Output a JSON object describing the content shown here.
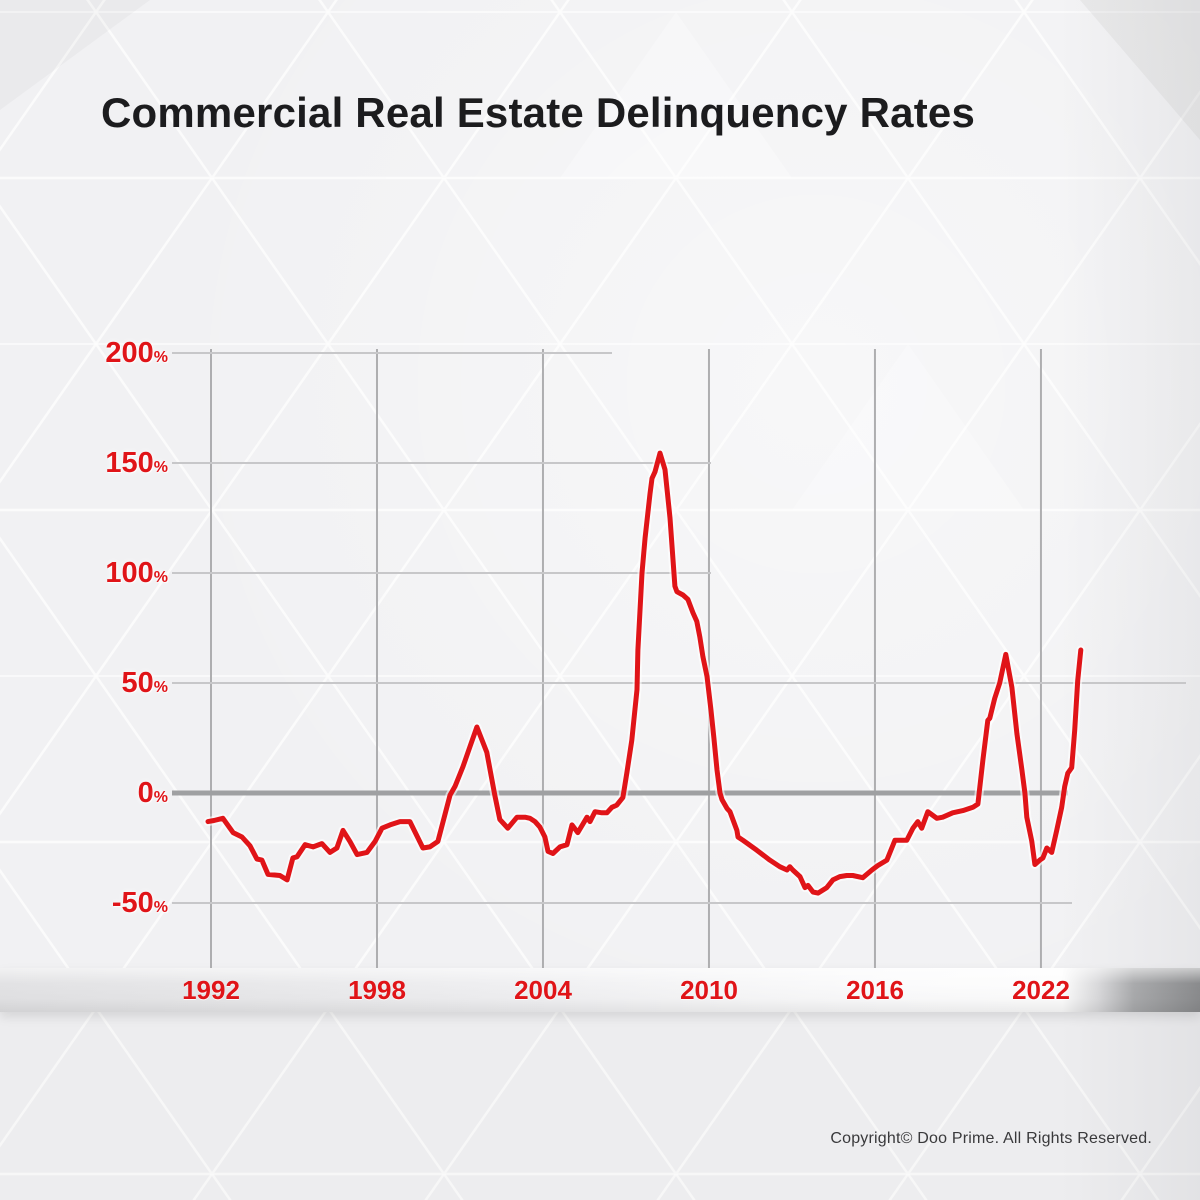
{
  "title": "Commercial Real Estate Delinquency Rates",
  "footer": {
    "copyright": "Copyright© Doo Prime. All Rights Reserved."
  },
  "colors": {
    "accent_red": "#e01418",
    "title_text": "#1c1c1e",
    "grid_line": "#c7c7c9",
    "vertical_grid_line": "#aeaeb0",
    "zero_line": "#9fa0a2",
    "copyright_text": "#39393b",
    "background": "#f1f1f3",
    "band_light": "#fdfdfd",
    "band_dark": "#8a8b8d"
  },
  "chart_data": {
    "type": "line",
    "title": "Commercial Real Estate Delinquency Rates",
    "xlabel": "",
    "ylabel": "",
    "y_unit": "%",
    "grid": true,
    "legend_position": "none",
    "line_color": "#e01418",
    "y_ticks": [
      200,
      150,
      100,
      50,
      0,
      -50
    ],
    "y_tick_labels": [
      "200",
      "150",
      "100",
      "50",
      "0",
      "-50"
    ],
    "x_ticks": [
      1992,
      1998,
      2004,
      2010,
      2016,
      2022
    ],
    "x_tick_labels": [
      "1992",
      "1998",
      "2004",
      "2010",
      "2016",
      "2022"
    ],
    "ylim": [
      -65,
      215
    ],
    "xlim": [
      1991.8,
      2023.6
    ],
    "series": [
      {
        "name": "delinquency-rate-change-pct",
        "points": [
          [
            1991.89,
            -13
          ],
          [
            1992.11,
            -12.5
          ],
          [
            1992.43,
            -11.5
          ],
          [
            1992.8,
            -18
          ],
          [
            1993.12,
            -20
          ],
          [
            1993.41,
            -24
          ],
          [
            1993.66,
            -30
          ],
          [
            1993.84,
            -30.5
          ],
          [
            1994.06,
            -37
          ],
          [
            1994.49,
            -37.5
          ],
          [
            1994.75,
            -39.5
          ],
          [
            1994.96,
            -29.5
          ],
          [
            1995.11,
            -29
          ],
          [
            1995.4,
            -23.5
          ],
          [
            1995.69,
            -24.5
          ],
          [
            1996.01,
            -23
          ],
          [
            1996.3,
            -27
          ],
          [
            1996.55,
            -25
          ],
          [
            1996.77,
            -17
          ],
          [
            1997.02,
            -22
          ],
          [
            1997.28,
            -28
          ],
          [
            1997.64,
            -27
          ],
          [
            1997.93,
            -22
          ],
          [
            1998.18,
            -16
          ],
          [
            1998.47,
            -14.5
          ],
          [
            1998.83,
            -13
          ],
          [
            1999.19,
            -13
          ],
          [
            1999.66,
            -25
          ],
          [
            1999.91,
            -24.5
          ],
          [
            2000.2,
            -22
          ],
          [
            2000.64,
            -1
          ],
          [
            2000.82,
            3
          ],
          [
            2001.11,
            12
          ],
          [
            2001.36,
            21
          ],
          [
            2001.61,
            30
          ],
          [
            2001.97,
            18.5
          ],
          [
            2002.26,
            -1
          ],
          [
            2002.44,
            -12
          ],
          [
            2002.73,
            -16
          ],
          [
            2003.06,
            -11
          ],
          [
            2003.35,
            -11
          ],
          [
            2003.53,
            -11.5
          ],
          [
            2003.71,
            -13
          ],
          [
            2003.89,
            -15.5
          ],
          [
            2004.07,
            -20
          ],
          [
            2004.18,
            -26.5
          ],
          [
            2004.36,
            -27.5
          ],
          [
            2004.61,
            -24.5
          ],
          [
            2004.87,
            -23.5
          ],
          [
            2005.05,
            -14.5
          ],
          [
            2005.26,
            -18
          ],
          [
            2005.59,
            -11
          ],
          [
            2005.7,
            -13
          ],
          [
            2005.88,
            -8.5
          ],
          [
            2006.13,
            -9
          ],
          [
            2006.31,
            -9
          ],
          [
            2006.49,
            -6.5
          ],
          [
            2006.67,
            -5.5
          ],
          [
            2006.89,
            -2
          ],
          [
            2007.03,
            9
          ],
          [
            2007.21,
            24
          ],
          [
            2007.4,
            47
          ],
          [
            2007.43,
            65
          ],
          [
            2007.58,
            100
          ],
          [
            2007.69,
            116
          ],
          [
            2007.87,
            136
          ],
          [
            2007.94,
            143
          ],
          [
            2008.05,
            146
          ],
          [
            2008.23,
            154.5
          ],
          [
            2008.41,
            147
          ],
          [
            2008.59,
            125
          ],
          [
            2008.77,
            94
          ],
          [
            2008.84,
            91.5
          ],
          [
            2009.06,
            90
          ],
          [
            2009.24,
            88
          ],
          [
            2009.42,
            82
          ],
          [
            2009.56,
            78
          ],
          [
            2009.67,
            71
          ],
          [
            2009.78,
            62
          ],
          [
            2009.93,
            53
          ],
          [
            2010.07,
            38
          ],
          [
            2010.18,
            25
          ],
          [
            2010.29,
            10.5
          ],
          [
            2010.4,
            0
          ],
          [
            2010.47,
            -3
          ],
          [
            2010.65,
            -7
          ],
          [
            2010.76,
            -8.5
          ],
          [
            2011.01,
            -17
          ],
          [
            2011.05,
            -20
          ],
          [
            2011.23,
            -21.5
          ],
          [
            2011.73,
            -26
          ],
          [
            2012.2,
            -30.5
          ],
          [
            2012.56,
            -33.5
          ],
          [
            2012.82,
            -35
          ],
          [
            2012.92,
            -33.5
          ],
          [
            2013.03,
            -35
          ],
          [
            2013.29,
            -38
          ],
          [
            2013.47,
            -43
          ],
          [
            2013.58,
            -42
          ],
          [
            2013.76,
            -45
          ],
          [
            2013.94,
            -45.5
          ],
          [
            2014.26,
            -43
          ],
          [
            2014.48,
            -39.5
          ],
          [
            2014.73,
            -38
          ],
          [
            2014.98,
            -37.5
          ],
          [
            2015.2,
            -37.5
          ],
          [
            2015.56,
            -38.5
          ],
          [
            2015.89,
            -35
          ],
          [
            2016.1,
            -33
          ],
          [
            2016.43,
            -30.5
          ],
          [
            2016.72,
            -21.5
          ],
          [
            2017.01,
            -21.5
          ],
          [
            2017.15,
            -21.5
          ],
          [
            2017.37,
            -16
          ],
          [
            2017.55,
            -13
          ],
          [
            2017.69,
            -16
          ],
          [
            2017.91,
            -8.5
          ],
          [
            2018.24,
            -11.5
          ],
          [
            2018.45,
            -11
          ],
          [
            2018.81,
            -9
          ],
          [
            2019.18,
            -8
          ],
          [
            2019.54,
            -6.5
          ],
          [
            2019.72,
            -5
          ],
          [
            2019.9,
            15
          ],
          [
            2020.08,
            33
          ],
          [
            2020.15,
            34
          ],
          [
            2020.33,
            43
          ],
          [
            2020.51,
            50
          ],
          [
            2020.73,
            63
          ],
          [
            2020.95,
            48
          ],
          [
            2021.13,
            27
          ],
          [
            2021.31,
            10.5
          ],
          [
            2021.42,
            0
          ],
          [
            2021.49,
            -11
          ],
          [
            2021.67,
            -22
          ],
          [
            2021.78,
            -32.5
          ],
          [
            2021.96,
            -30.5
          ],
          [
            2022.07,
            -29.5
          ],
          [
            2022.21,
            -25
          ],
          [
            2022.39,
            -27
          ],
          [
            2022.57,
            -17
          ],
          [
            2022.75,
            -6.5
          ],
          [
            2022.86,
            3
          ],
          [
            2022.97,
            9
          ],
          [
            2023.11,
            11.5
          ],
          [
            2023.22,
            28.5
          ],
          [
            2023.33,
            51
          ],
          [
            2023.44,
            65
          ]
        ]
      }
    ]
  }
}
